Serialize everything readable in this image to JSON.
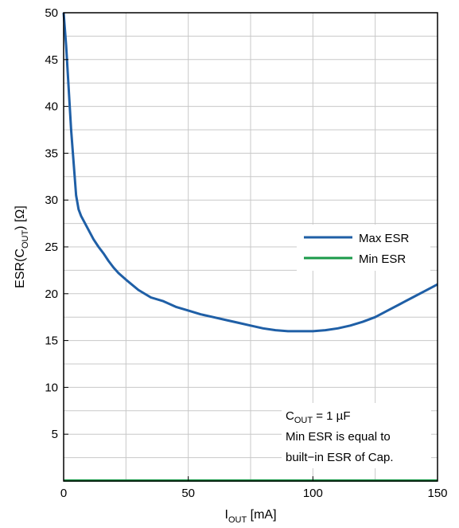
{
  "chart_data": {
    "type": "line",
    "xlabel_main": "I",
    "xlabel_sub": "OUT",
    "xlabel_unit": " [mA]",
    "ylabel_main": "ESR(C",
    "ylabel_sub": "OUT",
    "ylabel_unit": ") [Ω]",
    "xlim": [
      0,
      150
    ],
    "ylim": [
      0,
      50
    ],
    "x_ticks": [
      0,
      50,
      100,
      150
    ],
    "y_ticks": [
      5,
      10,
      15,
      20,
      25,
      30,
      35,
      40,
      45,
      50
    ],
    "x_minor_ticks": [
      25,
      75,
      125
    ],
    "y_minor_ticks": [
      2.5,
      7.5,
      12.5,
      17.5,
      22.5,
      27.5,
      32.5,
      37.5,
      42.5,
      47.5
    ],
    "grid": true,
    "legend_position": "right",
    "series": [
      {
        "name": "Max ESR",
        "color": "#1f5fa6",
        "x": [
          0,
          1,
          2,
          3,
          4,
          5,
          6,
          7,
          8,
          10,
          12,
          14,
          16,
          18,
          20,
          22,
          25,
          30,
          35,
          40,
          45,
          50,
          55,
          60,
          65,
          70,
          75,
          80,
          85,
          90,
          95,
          100,
          105,
          110,
          115,
          120,
          125,
          130,
          135,
          140,
          145,
          150
        ],
        "values": [
          50,
          46.5,
          42,
          37.5,
          34,
          30.5,
          29,
          28.3,
          27.8,
          26.8,
          25.8,
          25,
          24.3,
          23.5,
          22.8,
          22.2,
          21.5,
          20.4,
          19.6,
          19.2,
          18.6,
          18.2,
          17.8,
          17.5,
          17.2,
          16.9,
          16.6,
          16.3,
          16.1,
          16.0,
          16.0,
          16.0,
          16.1,
          16.3,
          16.6,
          17.0,
          17.5,
          18.2,
          18.9,
          19.6,
          20.3,
          21.0
        ]
      },
      {
        "name": "Min ESR",
        "color": "#1a9a4a",
        "x": [
          0,
          150
        ],
        "values": [
          0.05,
          0.05
        ]
      }
    ],
    "annotation": {
      "c_main": "C",
      "c_sub": "OUT",
      "c_rest": " = 1 µF",
      "line2": "Min ESR is equal to",
      "line3": "built−in ESR of Cap."
    }
  }
}
